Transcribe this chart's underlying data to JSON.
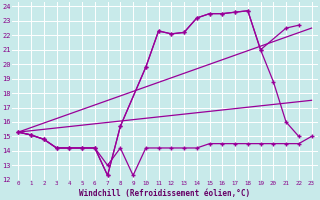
{
  "background_color": "#c8eaea",
  "grid_color": "#ffffff",
  "line_color": "#990099",
  "xlabel": "Windchill (Refroidissement éolien,°C)",
  "xlabel_color": "#660066",
  "tick_color": "#880088",
  "xlim": [
    -0.5,
    23.5
  ],
  "ylim": [
    12,
    24.3
  ],
  "xticks": [
    0,
    1,
    2,
    3,
    4,
    5,
    6,
    7,
    8,
    9,
    10,
    11,
    12,
    13,
    14,
    15,
    16,
    17,
    18,
    19,
    20,
    21,
    22,
    23
  ],
  "yticks": [
    12,
    13,
    14,
    15,
    16,
    17,
    18,
    19,
    20,
    21,
    22,
    23,
    24
  ],
  "line1_x": [
    0,
    1,
    2,
    3,
    4,
    5,
    6,
    7,
    8,
    9,
    10,
    11,
    12,
    13,
    14,
    15,
    16,
    17,
    18,
    19,
    20,
    21,
    22,
    23
  ],
  "line1_y": [
    15.3,
    15.1,
    14.8,
    14.2,
    14.2,
    14.2,
    14.2,
    13.0,
    14.2,
    12.3,
    14.2,
    14.2,
    14.2,
    14.2,
    14.2,
    14.5,
    14.5,
    14.5,
    14.5,
    14.5,
    14.5,
    14.5,
    14.5,
    15.0
  ],
  "line2_x": [
    0,
    23
  ],
  "line2_y": [
    15.3,
    22.5
  ],
  "line3_x": [
    0,
    23
  ],
  "line3_y": [
    15.3,
    17.5
  ],
  "line4_x": [
    0,
    1,
    2,
    3,
    4,
    5,
    6,
    7,
    8,
    10,
    11,
    12,
    13,
    14,
    15,
    16,
    17,
    18,
    19,
    20,
    21,
    22
  ],
  "line4_y": [
    15.3,
    15.1,
    14.8,
    14.2,
    14.2,
    14.2,
    14.2,
    12.3,
    15.7,
    19.8,
    22.3,
    22.1,
    22.2,
    23.2,
    23.5,
    23.5,
    23.6,
    23.7,
    21.0,
    18.8,
    16.0,
    15.0
  ],
  "line5_x": [
    0,
    1,
    2,
    3,
    4,
    5,
    6,
    7,
    8,
    10,
    11,
    12,
    13,
    14,
    15,
    16,
    17,
    18,
    19,
    21,
    22
  ],
  "line5_y": [
    15.3,
    15.1,
    14.8,
    14.2,
    14.2,
    14.2,
    14.2,
    12.3,
    15.7,
    19.8,
    22.3,
    22.1,
    22.2,
    23.2,
    23.5,
    23.5,
    23.6,
    23.7,
    21.0,
    22.5,
    22.7
  ]
}
